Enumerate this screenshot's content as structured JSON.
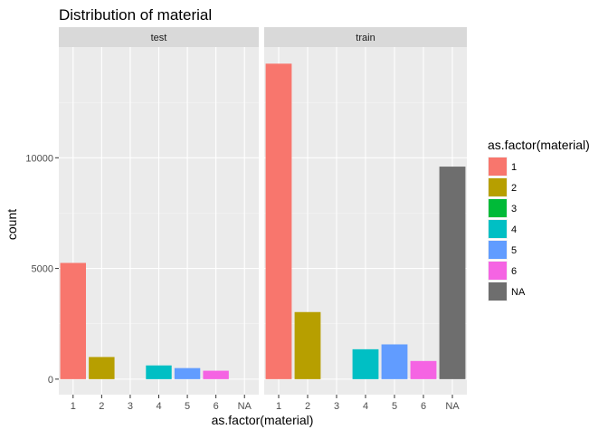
{
  "chart_data": {
    "type": "bar",
    "title": "Distribution of material",
    "xlabel": "as.factor(material)",
    "ylabel": "count",
    "ylim": [
      -700,
      15000
    ],
    "yticks": [
      0,
      5000,
      10000
    ],
    "grid": true,
    "legend": {
      "title": "as.factor(material)",
      "position": "right",
      "items": [
        {
          "label": "1",
          "color": "#F8766D"
        },
        {
          "label": "2",
          "color": "#B79F00"
        },
        {
          "label": "3",
          "color": "#00BA38"
        },
        {
          "label": "4",
          "color": "#00BFC4"
        },
        {
          "label": "5",
          "color": "#619CFF"
        },
        {
          "label": "6",
          "color": "#F564E3"
        },
        {
          "label": "NA",
          "color": "#6E6E6E"
        }
      ]
    },
    "categories": [
      "1",
      "2",
      "3",
      "4",
      "5",
      "6",
      "NA"
    ],
    "facets": [
      {
        "name": "test",
        "values": [
          5250,
          1000,
          0,
          620,
          500,
          380,
          0
        ]
      },
      {
        "name": "train",
        "values": [
          14250,
          3030,
          0,
          1350,
          1570,
          820,
          9600
        ]
      }
    ]
  }
}
